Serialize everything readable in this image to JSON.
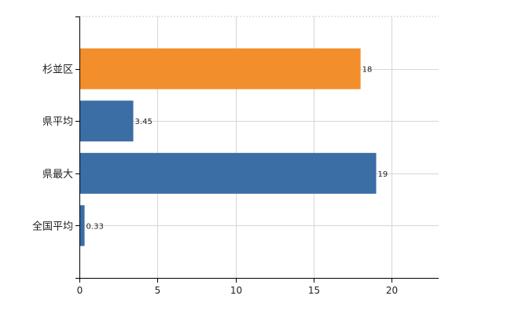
{
  "chart_data": {
    "type": "bar",
    "orientation": "horizontal",
    "title": "",
    "xlabel": "",
    "ylabel": "",
    "categories": [
      "杉並区",
      "県平均",
      "県最大",
      "全国平均"
    ],
    "values": [
      18,
      3.45,
      19,
      0.33
    ],
    "data_labels": [
      "18",
      "3.45",
      "19",
      "0.33"
    ],
    "bar_colors": [
      "#f28e2b",
      "#3a6ea5",
      "#3a6ea5",
      "#3a6ea5"
    ],
    "xlim": [
      0,
      23
    ],
    "x_ticks": [
      0,
      5,
      10,
      15,
      20
    ],
    "grid": true,
    "legend": "none"
  }
}
